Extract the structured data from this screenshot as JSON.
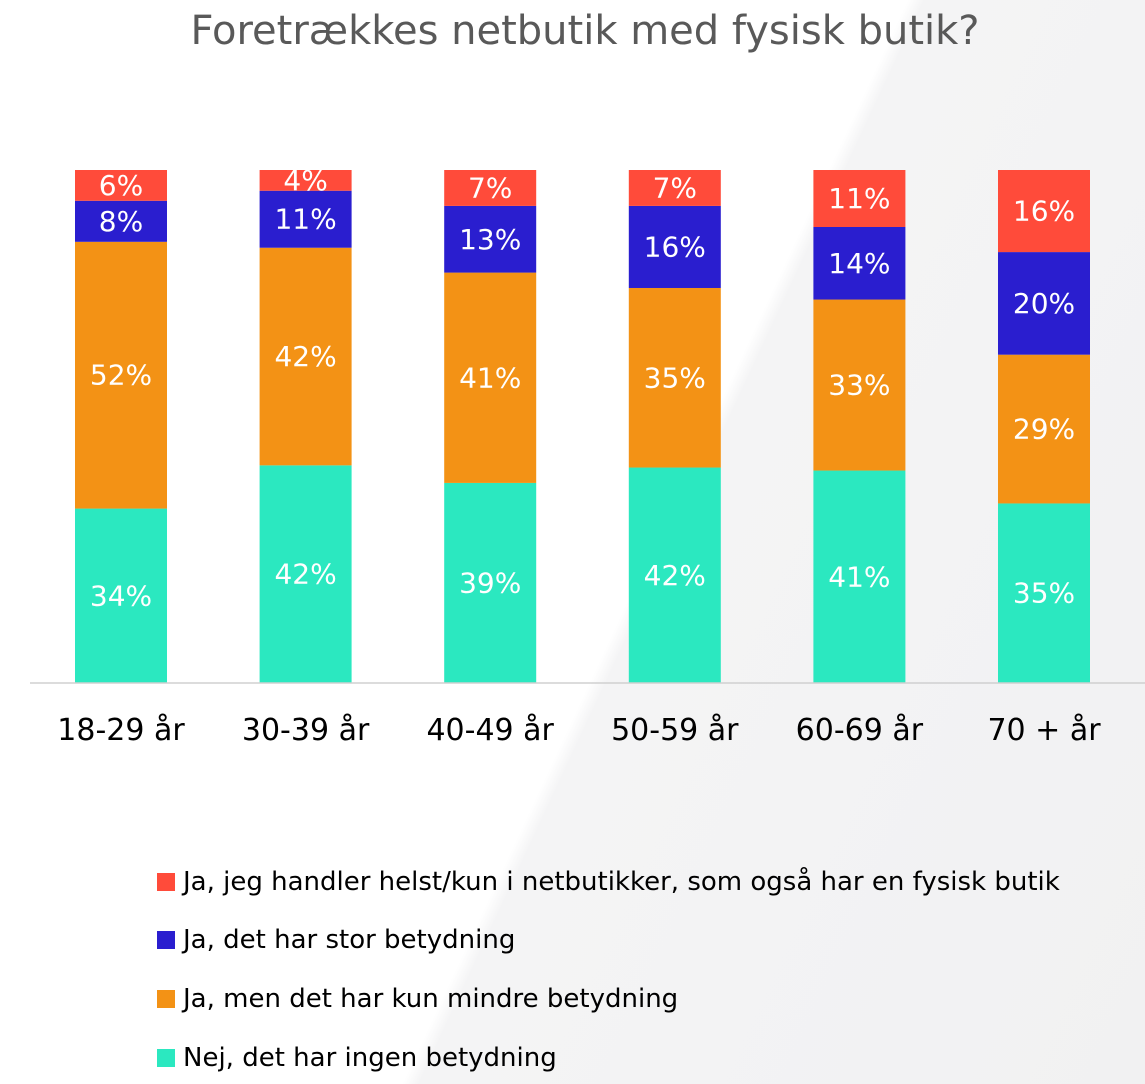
{
  "chart_data": {
    "type": "bar",
    "stacked": true,
    "title": "Foretrækkes netbutik med fysisk butik?",
    "categories": [
      "18-29 år",
      "30-39 år",
      "40-49 år",
      "50-59 år",
      "60-69 år",
      "70 + år"
    ],
    "series": [
      {
        "name": "Nej, det har ingen betydning",
        "color": "#2BE8C0",
        "values": [
          34,
          42,
          39,
          42,
          41,
          35
        ],
        "labels": [
          "34%",
          "42%",
          "39%",
          "42%",
          "41%",
          "35%"
        ]
      },
      {
        "name": "Ja, men det har kun mindre betydning",
        "color": "#F39215",
        "values": [
          52,
          42,
          41,
          35,
          33,
          29
        ],
        "labels": [
          "52%",
          "42%",
          "41%",
          "35%",
          "33%",
          "29%"
        ]
      },
      {
        "name": "Ja, det har stor betydning",
        "color": "#2A1ECF",
        "values": [
          8,
          11,
          13,
          16,
          14,
          20
        ],
        "labels": [
          "8%",
          "11%",
          "13%",
          "16%",
          "14%",
          "20%"
        ]
      },
      {
        "name": "Ja, jeg handler helst/kun i netbutikker, som også har en fysisk butik",
        "color": "#FF4B3A",
        "values": [
          6,
          4,
          7,
          7,
          11,
          16
        ],
        "labels": [
          "6%",
          "4%",
          "7%",
          "7%",
          "11%",
          "16%"
        ]
      }
    ],
    "legend_order": [
      3,
      2,
      1,
      0
    ],
    "legend_position": "bottom",
    "ylim": [
      0,
      100
    ],
    "grid": false,
    "xlabel": "",
    "ylabel": ""
  }
}
